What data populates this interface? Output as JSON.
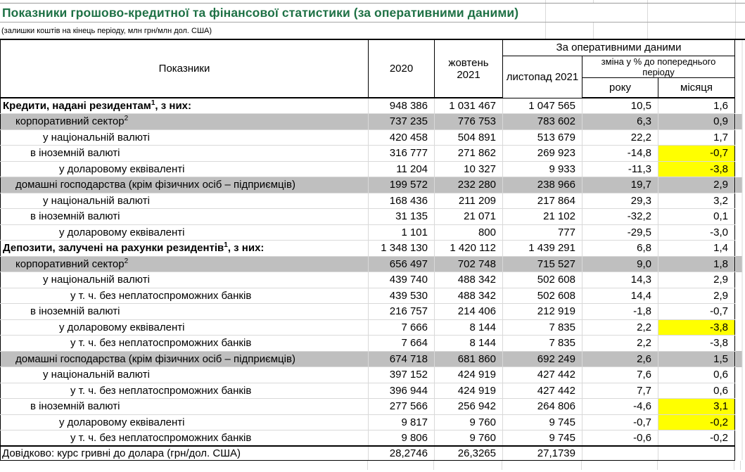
{
  "title": "Показники грошово-кредитної та фінансової статистики (за оперативними даними)",
  "subtitle": "(залишки коштів на кінець періоду, млн грн/млн дол. США)",
  "colors": {
    "title_green": "#1E7145",
    "band_gray": "#BFBFBF",
    "highlight_yellow": "#FFFF00",
    "gridline_gray": "#D9D9D9"
  },
  "table": {
    "header": {
      "indicators": "Показники",
      "col_2020": "2020",
      "col_oct": "жовтень 2021",
      "operational_group": "За оперативними даними",
      "col_nov": "листопад 2021",
      "change_group": "зміна у % до попереднього періоду",
      "col_year": "року",
      "col_month": "місяця"
    },
    "rows": [
      {
        "label": {
          "pre": "Кредити, надані резидентам",
          "sup": "1",
          "post": ", з них:"
        },
        "level": "main",
        "variant": "plain",
        "section_start": false,
        "values": [
          "948 386",
          "1 031 467",
          "1 047 565",
          "10,5",
          "1,6"
        ],
        "highlight": []
      },
      {
        "label": {
          "pre": "корпоративний сектор",
          "sup": "2",
          "post": ""
        },
        "level": "sector",
        "variant": "gray",
        "section_start": false,
        "values": [
          "737 235",
          "776 753",
          "783 602",
          "6,3",
          "0,9"
        ],
        "highlight": []
      },
      {
        "label": {
          "pre": "у національній валюті",
          "sup": "",
          "post": ""
        },
        "level": "nat",
        "variant": "plain",
        "section_start": false,
        "values": [
          "420 458",
          "504 891",
          "513 679",
          "22,2",
          "1,7"
        ],
        "highlight": []
      },
      {
        "label": {
          "pre": "в іноземній валюті",
          "sup": "",
          "post": ""
        },
        "level": "for",
        "variant": "plain",
        "section_start": false,
        "values": [
          "316 777",
          "271 862",
          "269 923",
          "-14,8",
          "-0,7"
        ],
        "highlight": [
          4
        ]
      },
      {
        "label": {
          "pre": "у доларовому еквіваленті",
          "sup": "",
          "post": ""
        },
        "level": "usd",
        "variant": "plain",
        "section_start": false,
        "values": [
          "11 204",
          "10 327",
          "9 933",
          "-11,3",
          "-3,8"
        ],
        "highlight": [
          4
        ]
      },
      {
        "label": {
          "pre": "домашні господарства (крім фізичних осіб – підприємців)",
          "sup": "",
          "post": ""
        },
        "level": "sector",
        "variant": "gray",
        "section_start": false,
        "values": [
          "199 572",
          "232 280",
          "238 966",
          "19,7",
          "2,9"
        ],
        "highlight": []
      },
      {
        "label": {
          "pre": "у національній валюті",
          "sup": "",
          "post": ""
        },
        "level": "nat",
        "variant": "plain",
        "section_start": false,
        "values": [
          "168 436",
          "211 209",
          "217 864",
          "29,3",
          "3,2"
        ],
        "highlight": []
      },
      {
        "label": {
          "pre": "в іноземній валюті",
          "sup": "",
          "post": ""
        },
        "level": "for",
        "variant": "plain",
        "section_start": false,
        "values": [
          "31 135",
          "21 071",
          "21 102",
          "-32,2",
          "0,1"
        ],
        "highlight": []
      },
      {
        "label": {
          "pre": "у доларовому еквіваленті",
          "sup": "",
          "post": ""
        },
        "level": "usd",
        "variant": "plain",
        "section_start": false,
        "values": [
          "1 101",
          "800",
          "777",
          "-29,5",
          "-3,0"
        ],
        "highlight": []
      },
      {
        "label": {
          "pre": "Депозити, залучені на рахунки резидентів",
          "sup": "1",
          "post": ", з них:"
        },
        "level": "main",
        "variant": "plain",
        "section_start": true,
        "values": [
          "1 348 130",
          "1 420 112",
          "1 439 291",
          "6,8",
          "1,4"
        ],
        "highlight": []
      },
      {
        "label": {
          "pre": "корпоративний сектор",
          "sup": "2",
          "post": ""
        },
        "level": "sector",
        "variant": "gray",
        "section_start": false,
        "values": [
          "656 497",
          "702 748",
          "715 527",
          "9,0",
          "1,8"
        ],
        "highlight": []
      },
      {
        "label": {
          "pre": "у національній валюті",
          "sup": "",
          "post": ""
        },
        "level": "nat",
        "variant": "plain",
        "section_start": false,
        "values": [
          "439 740",
          "488 342",
          "502 608",
          "14,3",
          "2,9"
        ],
        "highlight": []
      },
      {
        "label": {
          "pre": "у т. ч. без неплатоспроможних банків",
          "sup": "",
          "post": ""
        },
        "level": "tch",
        "variant": "plain",
        "section_start": false,
        "values": [
          "439 530",
          "488 342",
          "502 608",
          "14,4",
          "2,9"
        ],
        "highlight": []
      },
      {
        "label": {
          "pre": "в іноземній валюті",
          "sup": "",
          "post": ""
        },
        "level": "for",
        "variant": "plain",
        "section_start": false,
        "values": [
          "216 757",
          "214 406",
          "212 919",
          "-1,8",
          "-0,7"
        ],
        "highlight": []
      },
      {
        "label": {
          "pre": "у доларовому еквіваленті",
          "sup": "",
          "post": ""
        },
        "level": "usd",
        "variant": "plain",
        "section_start": false,
        "values": [
          "7 666",
          "8 144",
          "7 835",
          "2,2",
          "-3,8"
        ],
        "highlight": [
          4
        ]
      },
      {
        "label": {
          "pre": "у т. ч. без неплатоспроможних банків",
          "sup": "",
          "post": ""
        },
        "level": "tch",
        "variant": "plain",
        "section_start": false,
        "values": [
          "7 664",
          "8 144",
          "7 835",
          "2,2",
          "-3,8"
        ],
        "highlight": []
      },
      {
        "label": {
          "pre": "домашні господарства (крім фізичних осіб – підприємців)",
          "sup": "",
          "post": ""
        },
        "level": "sector",
        "variant": "gray",
        "section_start": false,
        "values": [
          "674 718",
          "681 860",
          "692 249",
          "2,6",
          "1,5"
        ],
        "highlight": []
      },
      {
        "label": {
          "pre": "у національній валюті",
          "sup": "",
          "post": ""
        },
        "level": "nat",
        "variant": "plain",
        "section_start": false,
        "values": [
          "397 152",
          "424 919",
          "427 442",
          "7,6",
          "0,6"
        ],
        "highlight": []
      },
      {
        "label": {
          "pre": "у т. ч. без неплатоспроможних банків",
          "sup": "",
          "post": ""
        },
        "level": "tch",
        "variant": "plain",
        "section_start": false,
        "values": [
          "396 944",
          "424 919",
          "427 442",
          "7,7",
          "0,6"
        ],
        "highlight": []
      },
      {
        "label": {
          "pre": "в іноземній валюті",
          "sup": "",
          "post": ""
        },
        "level": "for",
        "variant": "plain",
        "section_start": false,
        "values": [
          "277 566",
          "256 942",
          "264 806",
          "-4,6",
          "3,1"
        ],
        "highlight": [
          4
        ]
      },
      {
        "label": {
          "pre": "у доларовому еквіваленті",
          "sup": "",
          "post": ""
        },
        "level": "usd",
        "variant": "plain",
        "section_start": false,
        "values": [
          "9 817",
          "9 760",
          "9 745",
          "-0,7",
          "-0,2"
        ],
        "highlight": [
          4
        ]
      },
      {
        "label": {
          "pre": "у т. ч. без неплатоспроможних банків",
          "sup": "",
          "post": ""
        },
        "level": "tch",
        "variant": "plain",
        "section_start": false,
        "values": [
          "9 806",
          "9 760",
          "9 745",
          "-0,6",
          "-0,2"
        ],
        "highlight": []
      },
      {
        "label": {
          "pre": "Довідково: курс гривні до долара (грн/дол. США)",
          "sup": "",
          "post": ""
        },
        "level": "ref",
        "variant": "ref",
        "section_start": false,
        "values": [
          "28,2746",
          "26,3265",
          "27,1739",
          "",
          ""
        ],
        "highlight": []
      }
    ]
  }
}
